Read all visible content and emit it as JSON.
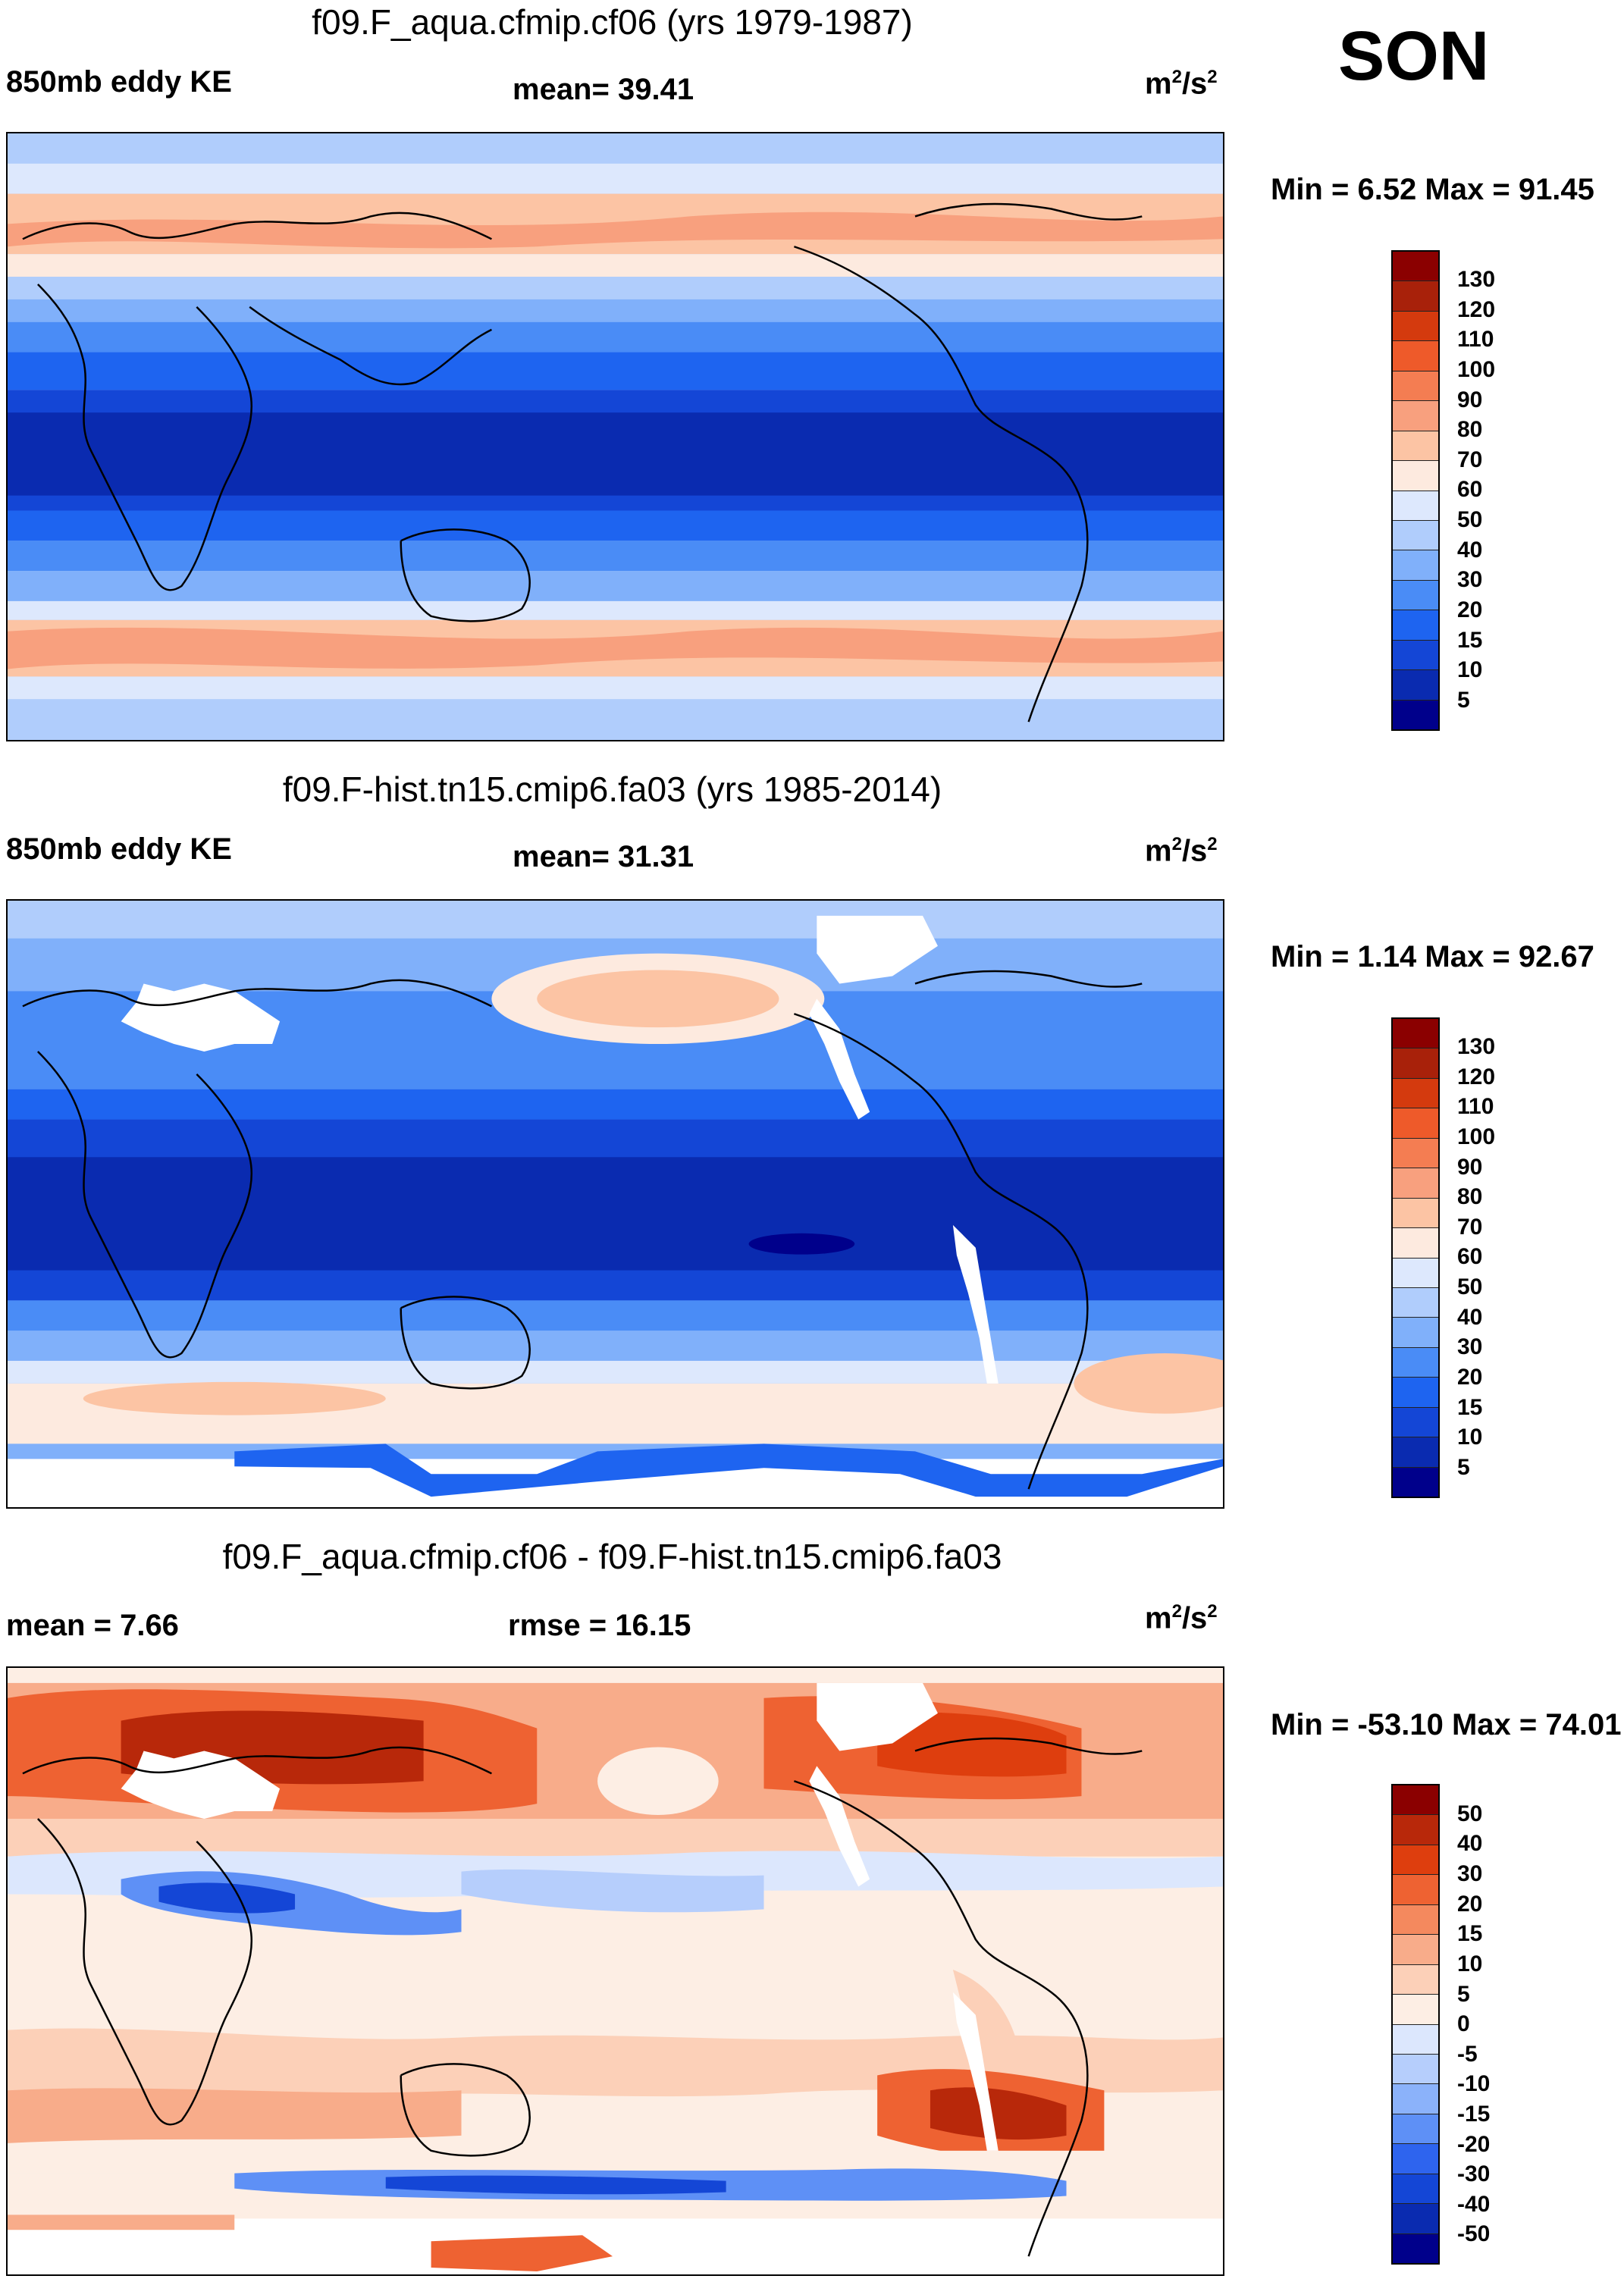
{
  "season": "SON",
  "colors": {
    "abs_scale": [
      "#00008b",
      "#0a2bb0",
      "#1446d6",
      "#1e64f0",
      "#4a8cf6",
      "#80b0fa",
      "#b0cdfc",
      "#dde8fd",
      "#fdeadf",
      "#fcc4a4",
      "#f8a07e",
      "#f47d52",
      "#ee5a2a",
      "#d43a0e",
      "#a8210a",
      "#8b0000"
    ],
    "diff_scale": [
      "#00008b",
      "#0a2bb0",
      "#1446d6",
      "#2e64ee",
      "#5e90f6",
      "#8bb2fa",
      "#b6cefc",
      "#dce7fd",
      "#fdeee4",
      "#fcd0b8",
      "#f8ac8a",
      "#f4895e",
      "#ee6232",
      "#de3e0e",
      "#b8280a",
      "#8b0000"
    ]
  },
  "panels": [
    {
      "title": "f09.F_aqua.cfmip.cf06 (yrs 1979-1987)",
      "left_label": "850mb eddy KE",
      "center_label": "mean=  39.41",
      "units_base": "m",
      "units_sup1": "2",
      "units_mid": "/s",
      "units_sup2": "2",
      "minmax": "Min =   6.52 Max =  91.45",
      "colorbar_labels": [
        "130",
        "120",
        "110",
        "100",
        "90",
        "80",
        "70",
        "60",
        "50",
        "40",
        "30",
        "20",
        "15",
        "10",
        "5"
      ]
    },
    {
      "title": "f09.F-hist.tn15.cmip6.fa03 (yrs 1985-2014)",
      "left_label": "850mb eddy KE",
      "center_label": "mean=  31.31",
      "units_base": "m",
      "units_sup1": "2",
      "units_mid": "/s",
      "units_sup2": "2",
      "minmax": "Min =   1.14 Max =  92.67",
      "colorbar_labels": [
        "130",
        "120",
        "110",
        "100",
        "90",
        "80",
        "70",
        "60",
        "50",
        "40",
        "30",
        "20",
        "15",
        "10",
        "5"
      ]
    },
    {
      "title": "f09.F_aqua.cfmip.cf06 - f09.F-hist.tn15.cmip6.fa03",
      "left_label": "mean =   7.66",
      "center_label": "rmse =  16.15",
      "units_base": "m",
      "units_sup1": "2",
      "units_mid": "/s",
      "units_sup2": "2",
      "minmax": "Min = -53.10 Max =  74.01",
      "colorbar_labels": [
        "50",
        "40",
        "30",
        "20",
        "15",
        "10",
        "5",
        "0",
        "-5",
        "-10",
        "-15",
        "-20",
        "-30",
        "-40",
        "-50"
      ]
    }
  ]
}
